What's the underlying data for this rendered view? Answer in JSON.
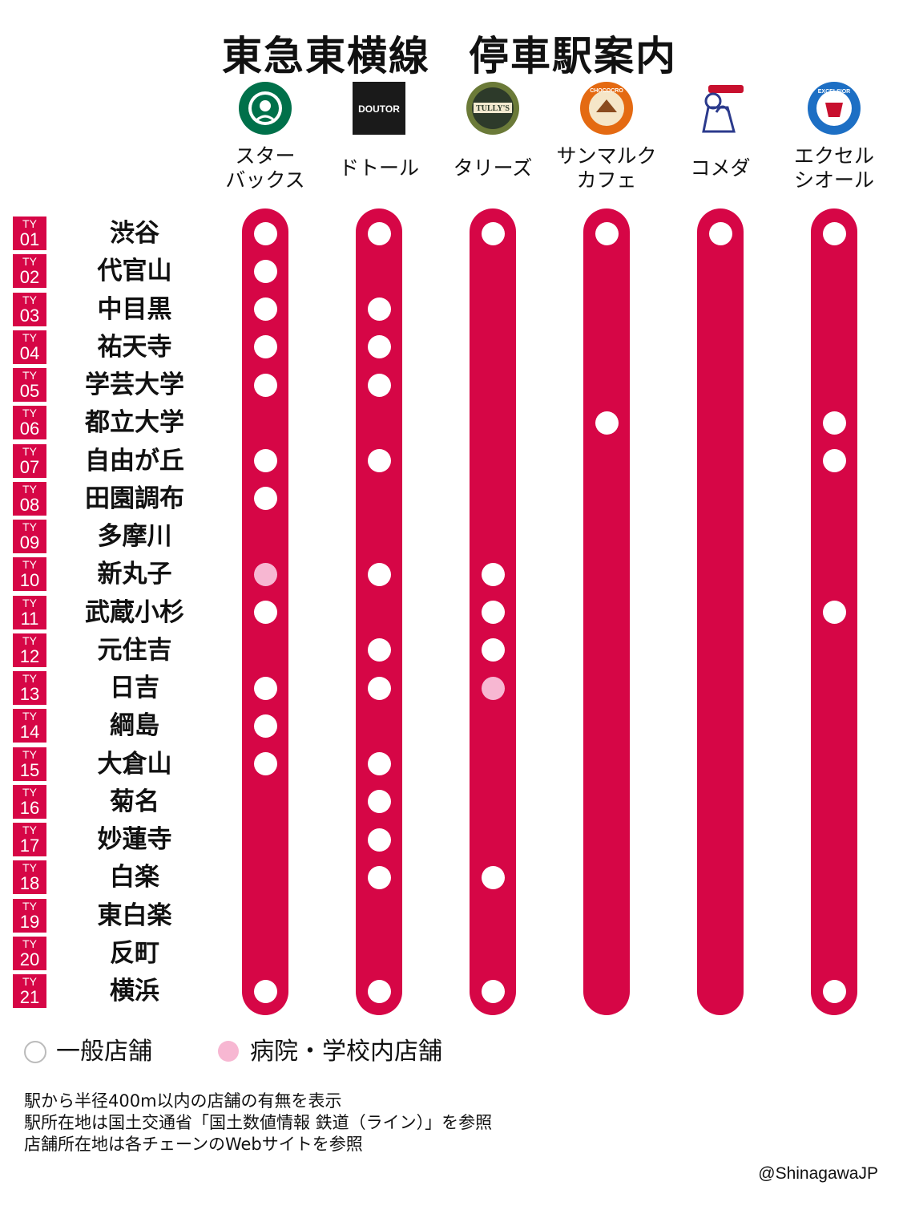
{
  "title_left": "東急東横線",
  "title_right": "停車駅案内",
  "chains": [
    {
      "name": "スター\nバックス",
      "icon": "starbucks-logo-icon",
      "color": "#00704a"
    },
    {
      "name": "ドトール",
      "icon": "doutor-logo-icon",
      "color": "#1a1a1a",
      "logo_text": "DOUTOR"
    },
    {
      "name": "タリーズ",
      "icon": "tullys-logo-icon",
      "color": "#2d3a2a",
      "logo_text": "TULLY'S"
    },
    {
      "name": "サンマルク\nカフェ",
      "icon": "st-marc-cafe-logo-icon",
      "color": "#e46a12",
      "logo_text": "CHOCOCRO"
    },
    {
      "name": "コメダ",
      "icon": "komeda-logo-icon",
      "color": "#2b3a8c"
    },
    {
      "name": "エクセル\nシオール",
      "icon": "excelsior-logo-icon",
      "color": "#1d6fc4",
      "logo_text": "EXCELSIOR CAFFE"
    }
  ],
  "stations": [
    {
      "code": "01",
      "name": "渋谷"
    },
    {
      "code": "02",
      "name": "代官山"
    },
    {
      "code": "03",
      "name": "中目黒"
    },
    {
      "code": "04",
      "name": "祐天寺"
    },
    {
      "code": "05",
      "name": "学芸大学"
    },
    {
      "code": "06",
      "name": "都立大学"
    },
    {
      "code": "07",
      "name": "自由が丘"
    },
    {
      "code": "08",
      "name": "田園調布"
    },
    {
      "code": "09",
      "name": "多摩川"
    },
    {
      "code": "10",
      "name": "新丸子"
    },
    {
      "code": "11",
      "name": "武蔵小杉"
    },
    {
      "code": "12",
      "name": "元住吉"
    },
    {
      "code": "13",
      "name": "日吉"
    },
    {
      "code": "14",
      "name": "綱島"
    },
    {
      "code": "15",
      "name": "大倉山"
    },
    {
      "code": "16",
      "name": "菊名"
    },
    {
      "code": "17",
      "name": "妙蓮寺"
    },
    {
      "code": "18",
      "name": "白楽"
    },
    {
      "code": "19",
      "name": "東白楽"
    },
    {
      "code": "20",
      "name": "反町"
    },
    {
      "code": "21",
      "name": "横浜"
    }
  ],
  "code_prefix": "TY",
  "presence_legend": {
    "0": "none",
    "1": "general",
    "2": "hospital-school"
  },
  "presence": [
    [
      1,
      1,
      1,
      1,
      1,
      1
    ],
    [
      1,
      0,
      0,
      0,
      0,
      0
    ],
    [
      1,
      1,
      0,
      0,
      0,
      0
    ],
    [
      1,
      1,
      0,
      0,
      0,
      0
    ],
    [
      1,
      1,
      0,
      0,
      0,
      0
    ],
    [
      0,
      0,
      0,
      1,
      0,
      1
    ],
    [
      1,
      1,
      0,
      0,
      0,
      1
    ],
    [
      1,
      0,
      0,
      0,
      0,
      0
    ],
    [
      0,
      0,
      0,
      0,
      0,
      0
    ],
    [
      2,
      1,
      1,
      0,
      0,
      0
    ],
    [
      1,
      0,
      1,
      0,
      0,
      1
    ],
    [
      0,
      1,
      1,
      0,
      0,
      0
    ],
    [
      1,
      1,
      2,
      0,
      0,
      0
    ],
    [
      1,
      0,
      0,
      0,
      0,
      0
    ],
    [
      1,
      1,
      0,
      0,
      0,
      0
    ],
    [
      0,
      1,
      0,
      0,
      0,
      0
    ],
    [
      0,
      1,
      0,
      0,
      0,
      0
    ],
    [
      0,
      1,
      1,
      0,
      0,
      0
    ],
    [
      0,
      0,
      0,
      0,
      0,
      0
    ],
    [
      0,
      0,
      0,
      0,
      0,
      0
    ],
    [
      1,
      1,
      1,
      0,
      0,
      1
    ]
  ],
  "colors": {
    "line": "#d60646",
    "general_dot": "#ffffff",
    "hospital_dot": "#f7b7d2"
  },
  "legend": {
    "general": "一般店舗",
    "hospital": "病院・学校内店舗"
  },
  "notes": [
    "駅から半径400m以内の店舗の有無を表示",
    "駅所在地は国土交通省「国土数値情報 鉄道（ライン）」を参照",
    "店舗所在地は各チェーンのWebサイトを参照"
  ],
  "credit": "@ShinagawaJP"
}
